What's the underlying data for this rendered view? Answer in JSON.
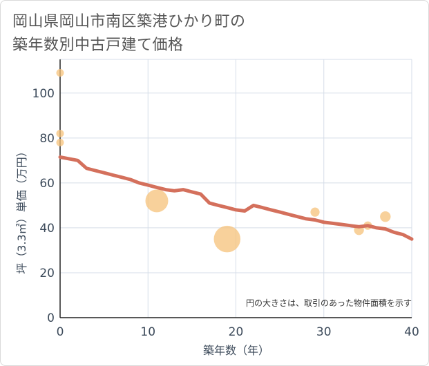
{
  "title_lines": [
    "岡山県岡山市南区築港ひかり町の",
    "築年数別中古戸建て価格"
  ],
  "chart_data": {
    "type": "scatter",
    "title": "岡山県岡山市南区築港ひかり町の築年数別中古戸建て価格",
    "xlabel": "築年数（年）",
    "ylabel": "坪（3.3㎡）単価（万円）",
    "xlim": [
      0,
      40
    ],
    "ylim": [
      0,
      115
    ],
    "x_ticks": [
      0,
      10,
      20,
      30,
      40
    ],
    "y_ticks": [
      0,
      20,
      40,
      60,
      80,
      100
    ],
    "grid": true,
    "note": "円の大きさは、取引のあった物件面積を示す",
    "colors": {
      "points": "#f5c27a",
      "trend": "#d4705c",
      "grid": "#d5dde8"
    },
    "points": [
      {
        "x": 0,
        "y": 109,
        "size": 1
      },
      {
        "x": 0,
        "y": 82,
        "size": 1
      },
      {
        "x": 0,
        "y": 78,
        "size": 1
      },
      {
        "x": 11,
        "y": 52,
        "size": 3
      },
      {
        "x": 19,
        "y": 35,
        "size": 3.5
      },
      {
        "x": 29,
        "y": 47,
        "size": 1.2
      },
      {
        "x": 34,
        "y": 39,
        "size": 1.3
      },
      {
        "x": 35,
        "y": 41,
        "size": 1.1
      },
      {
        "x": 37,
        "y": 45,
        "size": 1.4
      }
    ],
    "trend": {
      "x": [
        0,
        2,
        3,
        4,
        5,
        6,
        7,
        8,
        9,
        10,
        11,
        12,
        13,
        14,
        15,
        16,
        17,
        18,
        19,
        20,
        21,
        22,
        23,
        24,
        25,
        26,
        27,
        28,
        29,
        30,
        31,
        32,
        33,
        34,
        35,
        36,
        37,
        38,
        39,
        40
      ],
      "y": [
        71.5,
        70,
        66.5,
        65.5,
        64.5,
        63.5,
        62.5,
        61.5,
        60,
        59,
        58,
        57,
        56.5,
        57,
        56,
        55,
        51,
        50,
        49,
        48,
        47.5,
        50,
        49,
        48,
        47,
        46,
        45,
        44,
        43.5,
        42.5,
        42,
        41.5,
        41,
        40.5,
        41,
        40,
        39.5,
        38,
        37,
        35
      ]
    }
  }
}
